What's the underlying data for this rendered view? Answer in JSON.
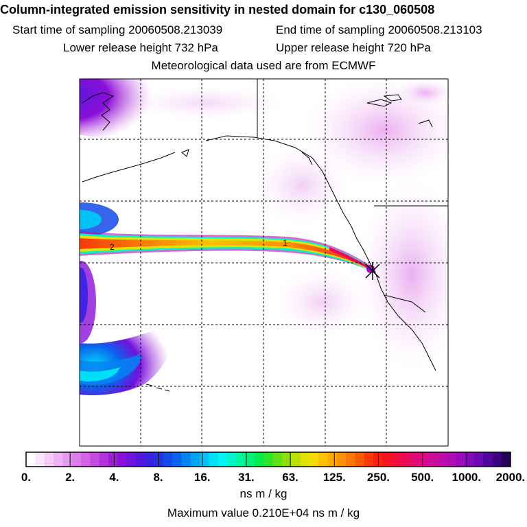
{
  "header": {
    "title": "Column-integrated emission sensitivity in nested domain for c130_060508",
    "start_label": "Start time of sampling 20060508.213039",
    "end_label": "End time of sampling 20060508.213103",
    "lower_label": "Lower release height  732 hPa",
    "upper_label": "Upper release height  720 hPa",
    "met_label": "Meteorological data used are from ECMWF"
  },
  "map": {
    "track_labels": [
      "2",
      "1"
    ],
    "release_marker": "release-point"
  },
  "colorbar": {
    "ticks": [
      "0.",
      "2.",
      "4.",
      "8.",
      "16.",
      "31.",
      "63.",
      "125.",
      "250.",
      "500.",
      "1000.",
      "2000."
    ],
    "colors": [
      "#ffffff",
      "#f9e6fb",
      "#f3cdf6",
      "#edb3f2",
      "#e69aee",
      "#dc7ee9",
      "#d264e4",
      "#c44be0",
      "#b232dc",
      "#9f1cd8",
      "#8a0fd8",
      "#6f12db",
      "#5317de",
      "#3a20e2",
      "#2332e6",
      "#1449ea",
      "#0a64ee",
      "#0583f2",
      "#02a3f4",
      "#00c2f6",
      "#00dff8",
      "#00f5f0",
      "#00f5c8",
      "#00f59d",
      "#00f277",
      "#06ec50",
      "#2ee52c",
      "#62e114",
      "#92de0a",
      "#bce006",
      "#dfe305",
      "#f4da04",
      "#fac203",
      "#fdaa03",
      "#fd9103",
      "#fc7604",
      "#fb5806",
      "#f9390a",
      "#f7220f",
      "#f5141f",
      "#f00e3a",
      "#ea0a55",
      "#e2096f",
      "#d80a85",
      "#cc0b98",
      "#be0da8",
      "#ad0db3",
      "#990cb9",
      "#840ab8",
      "#6d08b2",
      "#55059f",
      "#3c037f",
      "#24025a"
    ],
    "units": "ns m / kg",
    "max_value": "Maximum value  0.210E+04 ns m / kg"
  }
}
